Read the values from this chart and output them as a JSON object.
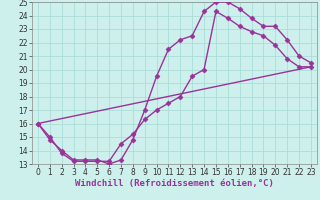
{
  "xlabel": "Windchill (Refroidissement éolien,°C)",
  "xlim": [
    -0.5,
    23.5
  ],
  "ylim": [
    13,
    25
  ],
  "xticks": [
    0,
    1,
    2,
    3,
    4,
    5,
    6,
    7,
    8,
    9,
    10,
    11,
    12,
    13,
    14,
    15,
    16,
    17,
    18,
    19,
    20,
    21,
    22,
    23
  ],
  "yticks": [
    13,
    14,
    15,
    16,
    17,
    18,
    19,
    20,
    21,
    22,
    23,
    24,
    25
  ],
  "bg_color": "#cdf0ec",
  "grid_color": "#aaddd8",
  "line_color": "#993399",
  "line1_x": [
    0,
    1,
    2,
    3,
    4,
    5,
    6,
    7,
    8,
    9,
    10,
    11,
    12,
    13,
    14,
    15,
    16,
    17,
    18,
    19,
    20,
    21,
    22,
    23
  ],
  "line1_y": [
    16,
    14.8,
    14.0,
    13.3,
    13.3,
    13.3,
    13.0,
    13.3,
    14.8,
    17.0,
    19.5,
    21.5,
    22.2,
    22.5,
    24.3,
    25.0,
    25.0,
    24.5,
    23.8,
    23.2,
    23.2,
    22.2,
    21.0,
    20.5
  ],
  "line2_x": [
    0,
    1,
    2,
    3,
    4,
    5,
    6,
    7,
    8,
    9,
    10,
    11,
    12,
    13,
    14,
    15,
    16,
    17,
    18,
    19,
    20,
    21,
    22,
    23
  ],
  "line2_y": [
    16,
    15.0,
    13.8,
    13.2,
    13.2,
    13.2,
    13.2,
    14.5,
    15.2,
    16.3,
    17.0,
    17.5,
    18.0,
    19.5,
    20.0,
    24.3,
    23.8,
    23.2,
    22.8,
    22.5,
    21.8,
    20.8,
    20.2,
    20.2
  ],
  "line3_x": [
    0,
    23
  ],
  "line3_y": [
    16,
    20.2
  ],
  "marker": "D",
  "markersize": 2.5,
  "linewidth": 1.0,
  "tick_fontsize": 5.5,
  "xlabel_fontsize": 6.5
}
